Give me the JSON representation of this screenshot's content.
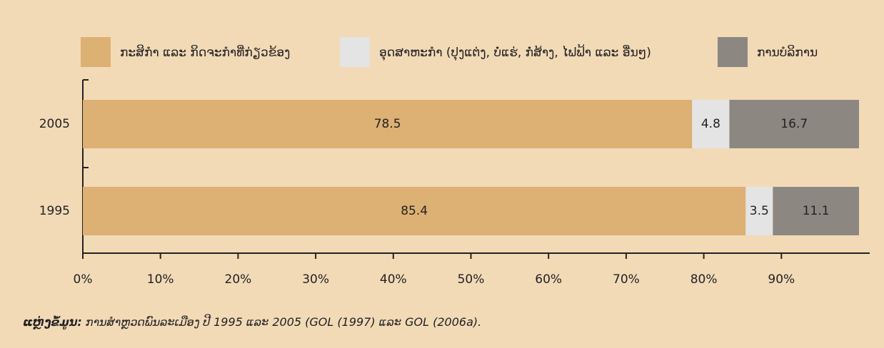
{
  "chart_data": {
    "type": "stacked-barh",
    "categories": [
      "2005",
      "1995"
    ],
    "series": [
      {
        "name": "ກະສິກຳ ແລະ ກິດຈະກຳທີ່ກ່ຽວຂ້ອງ",
        "color": "#ddb073",
        "values": [
          78.5,
          85.4
        ]
      },
      {
        "name": "ອຸດສາຫະກຳ (ປຸງແຕ່ງ, ບໍ່ແຮ່, ກໍ່ສ້າງ, ໄຟຟ້າ ແລະ ອື່ນໆ)",
        "color": "#e4e4e4",
        "values": [
          4.8,
          3.5
        ]
      },
      {
        "name": "ການບໍລິການ",
        "color": "#8d8781",
        "values": [
          16.7,
          11.1
        ]
      }
    ],
    "xlim": [
      0,
      100
    ],
    "xticks": [
      {
        "value": 0,
        "label": "0%"
      },
      {
        "value": 10,
        "label": "10%"
      },
      {
        "value": 20,
        "label": "20%"
      },
      {
        "value": 30,
        "label": "30%"
      },
      {
        "value": 40,
        "label": "40%"
      },
      {
        "value": 50,
        "label": "50%"
      },
      {
        "value": 60,
        "label": "60%"
      },
      {
        "value": 70,
        "label": "70%"
      },
      {
        "value": 80,
        "label": "80%"
      },
      {
        "value": 90,
        "label": "90%"
      }
    ],
    "source_label": "ແຫຼ່ງຂໍ້ມູນ:",
    "source": "ການສຳຫຼວດພົນລະເມືອງ ປີ 1995 ແລະ 2005 (GOL (1997) ແລະ GOL (2006a)."
  }
}
